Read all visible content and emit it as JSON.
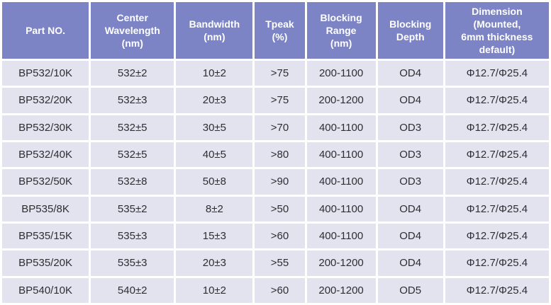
{
  "chart_data": {
    "type": "table",
    "columns": [
      {
        "key": "part_no",
        "label": "Part NO."
      },
      {
        "key": "center_wavelength",
        "label": "Center\nWavelength\n(nm)"
      },
      {
        "key": "bandwidth",
        "label": "Bandwidth\n(nm)"
      },
      {
        "key": "tpeak",
        "label": "Tpeak\n(%)"
      },
      {
        "key": "blocking_range",
        "label": "Blocking\nRange\n(nm)"
      },
      {
        "key": "blocking_depth",
        "label": "Blocking\nDepth"
      },
      {
        "key": "dimension",
        "label": "Dimension\n(Mounted,\n6mm thickness\ndefault)"
      }
    ],
    "rows": [
      [
        "BP532/10K",
        "532±2",
        "10±2",
        ">75",
        "200-1100",
        "OD4",
        "Φ12.7/Φ25.4"
      ],
      [
        "BP532/20K",
        "532±3",
        "20±3",
        ">75",
        "200-1200",
        "OD4",
        "Φ12.7/Φ25.4"
      ],
      [
        "BP532/30K",
        "532±5",
        "30±5",
        ">70",
        "400-1100",
        "OD3",
        "Φ12.7/Φ25.4"
      ],
      [
        "BP532/40K",
        "532±5",
        "40±5",
        ">80",
        "400-1100",
        "OD3",
        "Φ12.7/Φ25.4"
      ],
      [
        "BP532/50K",
        "532±8",
        "50±8",
        ">90",
        "400-1100",
        "OD3",
        "Φ12.7/Φ25.4"
      ],
      [
        "BP535/8K",
        "535±2",
        "8±2",
        ">50",
        "400-1100",
        "OD4",
        "Φ12.7/Φ25.4"
      ],
      [
        "BP535/15K",
        "535±3",
        "15±3",
        ">60",
        "400-1100",
        "OD4",
        "Φ12.7/Φ25.4"
      ],
      [
        "BP535/20K",
        "535±3",
        "20±3",
        ">55",
        "200-1200",
        "OD4",
        "Φ12.7/Φ25.4"
      ],
      [
        "BP540/10K",
        "540±2",
        "10±2",
        ">60",
        "200-1200",
        "OD5",
        "Φ12.7/Φ25.4"
      ]
    ]
  },
  "colors": {
    "header_bg": "#7c84c5",
    "header_text": "#ffffff",
    "row_bg": "#e2e3ef",
    "row_text": "#2e2e31",
    "grid": "#ffffff"
  }
}
